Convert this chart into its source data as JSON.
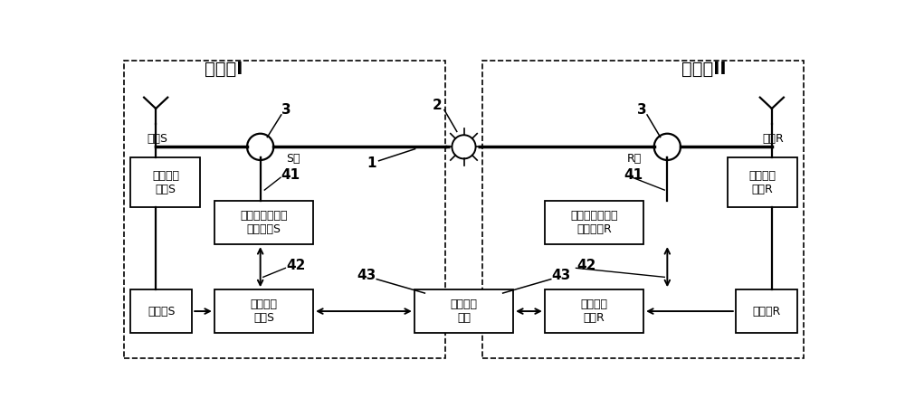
{
  "bg_color": "#ffffff",
  "title_S": "变电站I",
  "title_R": "变电站II",
  "antenna_S": "天线S",
  "antenna_R": "天线R",
  "clock_S": "时钟采集\n装置S",
  "clock_R": "时钟采集\n装置R",
  "oct_S": "光学电流互感器\n采集单元S",
  "oct_R": "光学电流互感器\n采集单元R",
  "switch_S": "交换机S",
  "switch_R": "交换机R",
  "travel_S": "行波测距\n装置S",
  "travel_R": "行波测距\n装置R",
  "data_proc": "数据处理\n主站",
  "S_end": "S端",
  "R_end": "R端",
  "lbl_1": "1",
  "lbl_2": "2",
  "lbl_3": "3",
  "lbl_41": "41",
  "lbl_42": "42",
  "lbl_43": "43"
}
